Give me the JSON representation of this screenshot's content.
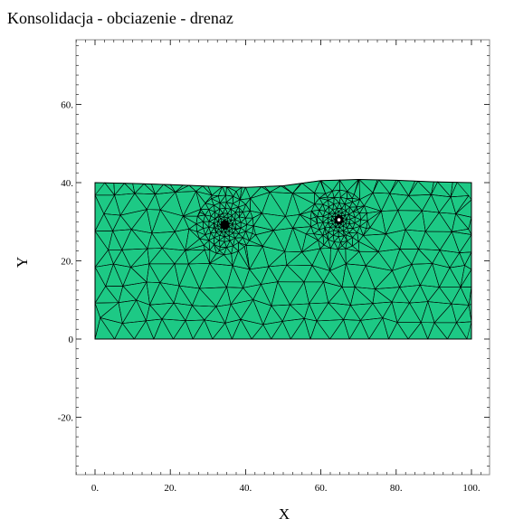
{
  "chart_data": {
    "type": "mesh",
    "title": "Konsolidacja - obciazenie - drenaz",
    "xlabel": "X",
    "ylabel": "Y",
    "xlim": [
      -5,
      105
    ],
    "ylim": [
      -35,
      76
    ],
    "x_ticks": [
      0,
      20,
      40,
      60,
      80,
      100
    ],
    "x_tick_labels": [
      "0.",
      "20.",
      "40.",
      "60.",
      "80.",
      "100."
    ],
    "y_ticks": [
      -20,
      0,
      20,
      40,
      60
    ],
    "y_tick_labels": [
      "-20.",
      "0",
      "20.",
      "40.",
      "60."
    ],
    "domain_polygon": [
      [
        0,
        0
      ],
      [
        100,
        0
      ],
      [
        100,
        40
      ],
      [
        90,
        40.2
      ],
      [
        80,
        40.6
      ],
      [
        70,
        40.8
      ],
      [
        60,
        40.5
      ],
      [
        50,
        39.2
      ],
      [
        40,
        38.8
      ],
      [
        30,
        39.1
      ],
      [
        20,
        39.5
      ],
      [
        10,
        39.8
      ],
      [
        0,
        40
      ]
    ],
    "refinement_points": [
      {
        "x": 34.5,
        "y": 29.2,
        "marker": "black"
      },
      {
        "x": 64.8,
        "y": 30.5,
        "marker": "white"
      }
    ],
    "fill_color": "#1DC985",
    "edge_color": "#000000",
    "grid": false
  }
}
